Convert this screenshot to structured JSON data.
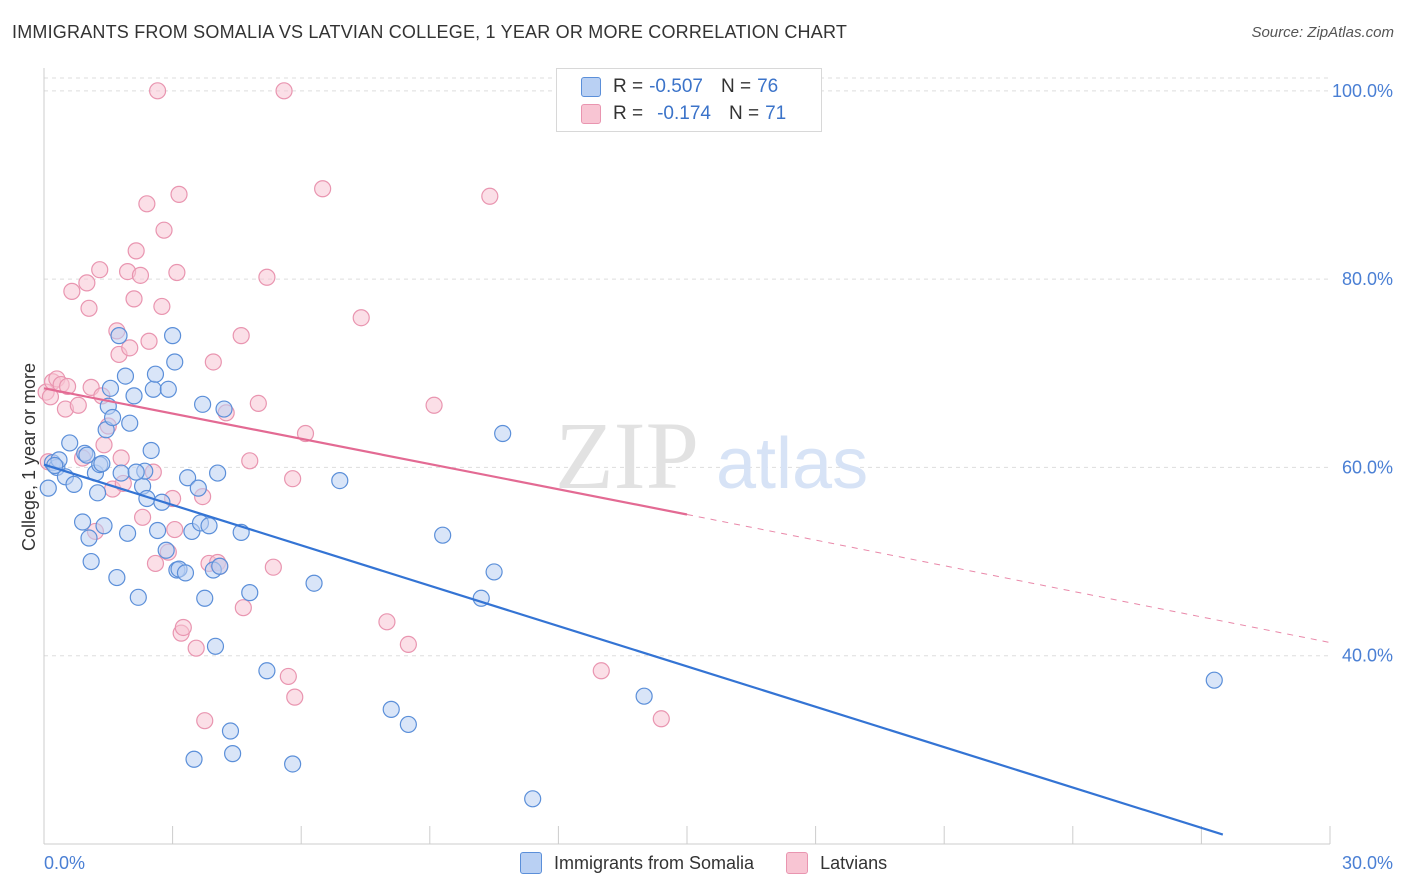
{
  "header": {
    "title": "IMMIGRANTS FROM SOMALIA VS LATVIAN COLLEGE, 1 YEAR OR MORE CORRELATION CHART",
    "source": "Source: ZipAtlas.com"
  },
  "watermark": {
    "zip": "ZIP",
    "atlas": "atlas"
  },
  "legend": {
    "r_label": "R =",
    "n_label": "N =",
    "somalia": {
      "r": "-0.507",
      "n": "76"
    },
    "latvians": {
      "r": "-0.174",
      "n": "71"
    }
  },
  "colors": {
    "somalia_fill": "#b9d0f3",
    "somalia_stroke": "#5b8fd9",
    "somalia_line": "#3474d4",
    "latvians_fill": "#f8c5d3",
    "latvians_stroke": "#e995b0",
    "latvians_line": "#e36a93",
    "axis_tick_text": "#4a7fd4",
    "grid": "#dddddd"
  },
  "chart_data": {
    "type": "scatter",
    "title": "IMMIGRANTS FROM SOMALIA VS LATVIAN COLLEGE, 1 YEAR OR MORE CORRELATION CHART",
    "xlabel": "",
    "ylabel": "College, 1 year or more",
    "xlim": [
      0,
      30
    ],
    "ylim": [
      20,
      102
    ],
    "x_tick_labels": [
      "0.0%",
      "30.0%"
    ],
    "y_ticks": [
      40,
      60,
      80,
      100
    ],
    "y_tick_labels": [
      "40.0%",
      "60.0%",
      "80.0%",
      "100.0%"
    ],
    "grid": true,
    "legend_position": "bottom",
    "series": [
      {
        "name": "Immigrants from Somalia",
        "r": -0.507,
        "n": 76,
        "trend": {
          "x": [
            0,
            27.5
          ],
          "y": [
            60.3,
            21.0
          ],
          "dashed_extension": false
        },
        "points": [
          [
            0.1,
            57.8
          ],
          [
            0.2,
            60.5
          ],
          [
            0.3,
            60.0
          ],
          [
            0.35,
            60.8
          ],
          [
            0.5,
            59.0
          ],
          [
            0.6,
            62.6
          ],
          [
            0.7,
            58.2
          ],
          [
            0.9,
            54.2
          ],
          [
            0.95,
            61.5
          ],
          [
            1.05,
            52.5
          ],
          [
            1.1,
            50.0
          ],
          [
            1.2,
            59.4
          ],
          [
            1.25,
            57.3
          ],
          [
            1.3,
            60.3
          ],
          [
            1.35,
            60.4
          ],
          [
            1.4,
            53.8
          ],
          [
            1.45,
            64.0
          ],
          [
            1.5,
            66.5
          ],
          [
            1.55,
            68.4
          ],
          [
            1.6,
            65.3
          ],
          [
            1.7,
            48.3
          ],
          [
            1.75,
            74.0
          ],
          [
            1.8,
            59.4
          ],
          [
            1.9,
            69.7
          ],
          [
            1.95,
            53.0
          ],
          [
            2.0,
            64.7
          ],
          [
            2.1,
            67.6
          ],
          [
            2.2,
            46.2
          ],
          [
            2.3,
            58.0
          ],
          [
            2.35,
            59.6
          ],
          [
            2.4,
            56.7
          ],
          [
            2.5,
            61.8
          ],
          [
            2.55,
            68.3
          ],
          [
            2.6,
            69.9
          ],
          [
            2.65,
            53.3
          ],
          [
            2.75,
            56.3
          ],
          [
            2.85,
            51.2
          ],
          [
            2.9,
            68.3
          ],
          [
            3.0,
            74.0
          ],
          [
            3.05,
            71.2
          ],
          [
            3.1,
            49.1
          ],
          [
            3.15,
            49.2
          ],
          [
            3.3,
            48.8
          ],
          [
            3.35,
            58.9
          ],
          [
            3.45,
            53.2
          ],
          [
            3.6,
            57.8
          ],
          [
            3.65,
            54.1
          ],
          [
            3.7,
            66.7
          ],
          [
            3.75,
            46.1
          ],
          [
            3.85,
            53.8
          ],
          [
            3.95,
            49.1
          ],
          [
            4.0,
            41.0
          ],
          [
            4.05,
            59.4
          ],
          [
            4.1,
            49.5
          ],
          [
            4.2,
            66.2
          ],
          [
            4.35,
            32.0
          ],
          [
            4.4,
            29.6
          ],
          [
            4.6,
            53.1
          ],
          [
            4.8,
            46.7
          ],
          [
            5.2,
            38.4
          ],
          [
            5.8,
            28.5
          ],
          [
            6.3,
            47.7
          ],
          [
            6.9,
            58.6
          ],
          [
            8.1,
            34.3
          ],
          [
            8.5,
            32.7
          ],
          [
            9.3,
            52.8
          ],
          [
            10.2,
            46.1
          ],
          [
            10.5,
            48.9
          ],
          [
            10.7,
            63.6
          ],
          [
            11.4,
            24.8
          ],
          [
            14.0,
            35.7
          ],
          [
            27.3,
            37.4
          ],
          [
            0.25,
            60.2
          ],
          [
            1.0,
            61.3
          ],
          [
            2.15,
            59.5
          ],
          [
            3.5,
            29.0
          ]
        ]
      },
      {
        "name": "Latvians",
        "r": -0.174,
        "n": 71,
        "trend": {
          "x": [
            0,
            15.0
          ],
          "y": [
            68.4,
            55.0
          ],
          "dashed_extension": {
            "x": [
              15.0,
              30.0
            ],
            "y": [
              55.0,
              41.4
            ]
          }
        },
        "points": [
          [
            0.05,
            68.0
          ],
          [
            0.1,
            60.6
          ],
          [
            0.2,
            69.1
          ],
          [
            0.3,
            69.4
          ],
          [
            0.4,
            68.8
          ],
          [
            0.5,
            66.2
          ],
          [
            0.55,
            68.6
          ],
          [
            0.65,
            78.7
          ],
          [
            0.8,
            66.6
          ],
          [
            0.9,
            61.0
          ],
          [
            1.0,
            79.6
          ],
          [
            1.05,
            76.9
          ],
          [
            1.1,
            68.5
          ],
          [
            1.2,
            53.2
          ],
          [
            1.3,
            81.0
          ],
          [
            1.35,
            67.6
          ],
          [
            1.5,
            64.4
          ],
          [
            1.6,
            57.7
          ],
          [
            1.7,
            74.5
          ],
          [
            1.75,
            72.0
          ],
          [
            1.8,
            61.0
          ],
          [
            1.85,
            58.3
          ],
          [
            1.95,
            80.8
          ],
          [
            2.0,
            72.7
          ],
          [
            2.1,
            77.9
          ],
          [
            2.15,
            83.0
          ],
          [
            2.25,
            80.4
          ],
          [
            2.3,
            54.7
          ],
          [
            2.4,
            88.0
          ],
          [
            2.55,
            59.5
          ],
          [
            2.6,
            49.8
          ],
          [
            2.65,
            100.0
          ],
          [
            2.75,
            77.1
          ],
          [
            2.8,
            85.2
          ],
          [
            2.9,
            51.0
          ],
          [
            3.0,
            56.7
          ],
          [
            3.05,
            53.4
          ],
          [
            3.1,
            80.7
          ],
          [
            3.15,
            89.0
          ],
          [
            3.2,
            42.4
          ],
          [
            3.25,
            43.0
          ],
          [
            3.55,
            40.8
          ],
          [
            3.7,
            56.9
          ],
          [
            3.75,
            33.1
          ],
          [
            3.85,
            49.8
          ],
          [
            3.95,
            71.2
          ],
          [
            4.05,
            49.9
          ],
          [
            4.1,
            49.5
          ],
          [
            4.25,
            65.8
          ],
          [
            4.6,
            74.0
          ],
          [
            4.65,
            45.1
          ],
          [
            4.8,
            60.7
          ],
          [
            5.0,
            66.8
          ],
          [
            5.2,
            80.2
          ],
          [
            5.35,
            49.4
          ],
          [
            5.6,
            100.0
          ],
          [
            5.7,
            37.8
          ],
          [
            5.8,
            58.8
          ],
          [
            5.85,
            35.6
          ],
          [
            6.1,
            63.6
          ],
          [
            6.5,
            89.6
          ],
          [
            7.4,
            75.9
          ],
          [
            8.0,
            43.6
          ],
          [
            8.5,
            41.2
          ],
          [
            9.1,
            66.6
          ],
          [
            10.4,
            88.8
          ],
          [
            13.0,
            38.4
          ],
          [
            14.4,
            33.3
          ],
          [
            0.15,
            67.5
          ],
          [
            1.4,
            62.4
          ],
          [
            2.45,
            73.4
          ]
        ]
      }
    ]
  }
}
